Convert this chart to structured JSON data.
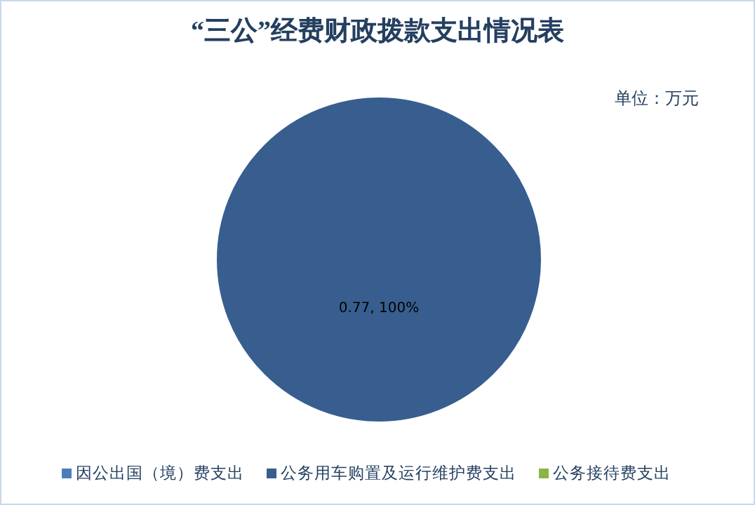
{
  "chart_data": {
    "type": "pie",
    "title": "“三公”经费财政拨款支出情况表",
    "annotations": [
      "单位：万元"
    ],
    "categories": [
      "因公出国（境）费支出",
      "公务用车购置及运行维护费支出",
      "公务接待费支出"
    ],
    "values": [
      0,
      0.77,
      0
    ],
    "colors": [
      "#4a7ebb",
      "#375e8f",
      "#8cb345"
    ],
    "value_labels": [
      null,
      "0.77, 100%",
      null
    ],
    "legend": "bottom"
  }
}
